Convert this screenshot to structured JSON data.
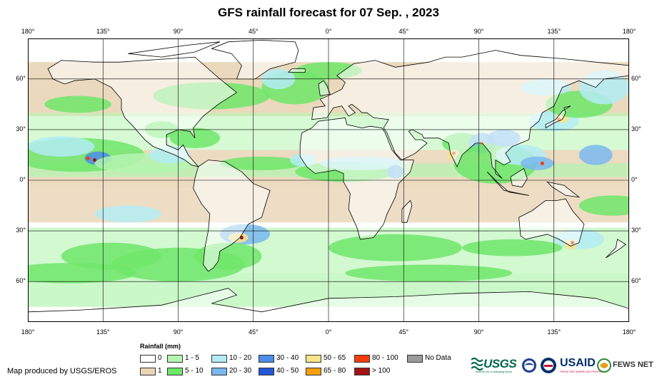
{
  "title": "GFS rainfall forecast for 07 Sep. , 2023",
  "map": {
    "lon_ticks": [
      "180°",
      "135°",
      "90°",
      "45°",
      "0°",
      "45°",
      "90°",
      "135°",
      "180°"
    ],
    "lat_ticks_left": [
      "60°",
      "30°",
      "0°",
      "30°",
      "60°"
    ],
    "lat_ticks_right": [
      "60°",
      "30°",
      "0°",
      "30°",
      "60°"
    ],
    "colors": {
      "ocean_bg": "#ffffff",
      "land_outline": "#000000",
      "graticule": "#000000"
    }
  },
  "legend": {
    "title": "Rainfall (mm)",
    "classes": [
      {
        "label": "0",
        "color": "#ffffff"
      },
      {
        "label": "1",
        "color": "#e8d5b5"
      },
      {
        "label": "1 - 5",
        "color": "#b4f5b0"
      },
      {
        "label": "5 - 10",
        "color": "#6ee66a"
      },
      {
        "label": "10 - 20",
        "color": "#b3ecf5"
      },
      {
        "label": "20 - 30",
        "color": "#7ab8f0"
      },
      {
        "label": "30 - 40",
        "color": "#4b8de8"
      },
      {
        "label": "40 - 50",
        "color": "#2457d8"
      },
      {
        "label": "50 - 65",
        "color": "#fae38a"
      },
      {
        "label": "65 - 80",
        "color": "#f5a00a"
      },
      {
        "label": "80 - 100",
        "color": "#f53c0a"
      },
      {
        "label": "> 100",
        "color": "#a01414"
      },
      {
        "label": "No Data",
        "color": "#9b9b9b"
      }
    ]
  },
  "credit": "Map produced by USGS/EROS",
  "logos": {
    "usgs": "USGS",
    "usgs_tagline": "science for a changing world",
    "usaid": "USAID",
    "usaid_tagline": "FROM THE AMERICAN PEOPLE",
    "fews": "FEWS NET",
    "icons": [
      "usgs-logo-icon",
      "noaa-logo-icon",
      "usaid-seal-icon",
      "fewsnet-logo-icon"
    ]
  }
}
